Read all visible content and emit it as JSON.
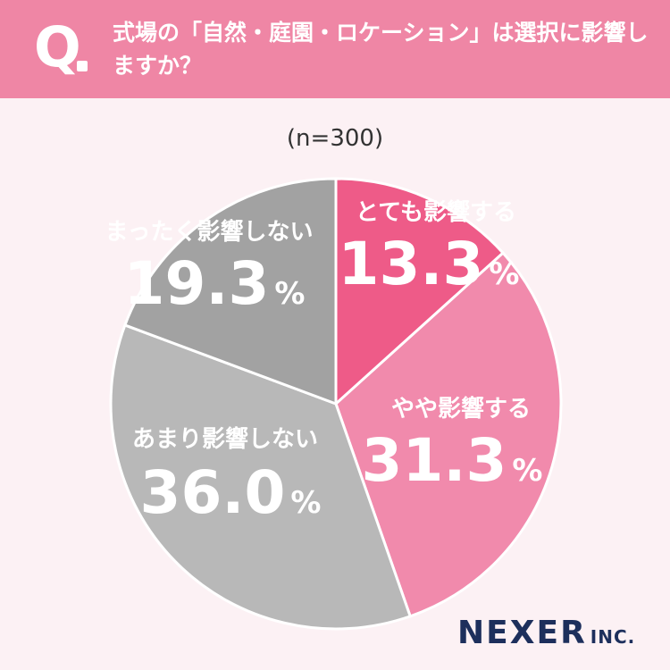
{
  "header": {
    "q_mark": "Q",
    "question": "式場の「自然・庭園・ロケーション」は選択に影響しますか？"
  },
  "sample_size": "(n=300)",
  "chart_data": {
    "type": "pie",
    "slices": [
      {
        "label": "とても影響する",
        "value": 13.3,
        "value_text": "13.3",
        "unit": "%",
        "color": "#ee5b88",
        "label_color": "#ee5b88"
      },
      {
        "label": "やや影響する",
        "value": 31.3,
        "value_text": "31.3",
        "unit": "%",
        "color": "#f18aac",
        "label_color": "#ffffff"
      },
      {
        "label": "あまり影響しない",
        "value": 36.0,
        "value_text": "36.0",
        "unit": "%",
        "color": "#b8b8b8",
        "label_color": "#ffffff"
      },
      {
        "label": "まったく影響しない",
        "value": 19.3,
        "value_text": "19.3",
        "unit": "%",
        "color": "#a2a2a2",
        "label_color": "#ffffff"
      }
    ]
  },
  "logo": {
    "main": "NEXER",
    "sub": "INC."
  }
}
